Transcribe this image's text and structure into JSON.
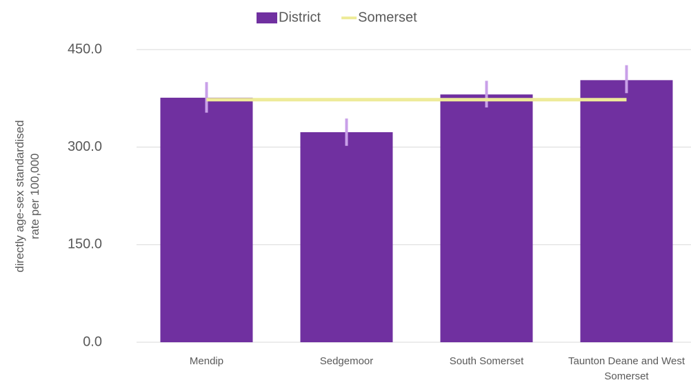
{
  "chart_data": {
    "type": "bar",
    "y_label": "directly age-sex standardised rate per 100,000",
    "categories": [
      "Mendip",
      "Sedgemoor",
      "South Somerset",
      "Taunton Deane and West Somerset"
    ],
    "series": [
      {
        "name": "District",
        "color": "#7030a0",
        "values": [
          376,
          323,
          381,
          403
        ],
        "lower": [
          353,
          302,
          361,
          383
        ],
        "upper": [
          400,
          344,
          402,
          426
        ],
        "error_color": "#c9a0e8"
      },
      {
        "name": "Somerset",
        "type": "line",
        "color": "#eeeb99",
        "values": [
          373,
          373,
          373,
          373
        ]
      }
    ],
    "ylim": [
      0,
      450
    ],
    "yticks": [
      {
        "value": 0,
        "label": "0.0"
      },
      {
        "value": 150,
        "label": "150.0"
      },
      {
        "value": 300,
        "label": "300.0"
      },
      {
        "value": 450,
        "label": "450.0"
      }
    ],
    "grid": true,
    "legend": "top"
  }
}
